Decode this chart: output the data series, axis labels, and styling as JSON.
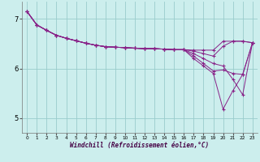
{
  "xlabel": "Windchill (Refroidissement éolien,°C)",
  "background_color": "#cceeed",
  "line_color": "#882288",
  "grid_color": "#99cccc",
  "xlim": [
    -0.5,
    23.5
  ],
  "ylim": [
    4.7,
    7.35
  ],
  "yticks": [
    5,
    6,
    7
  ],
  "xticks": [
    0,
    1,
    2,
    3,
    4,
    5,
    6,
    7,
    8,
    9,
    10,
    11,
    12,
    13,
    14,
    15,
    16,
    17,
    18,
    19,
    20,
    21,
    22,
    23
  ],
  "lines": [
    [
      7.15,
      6.88,
      6.77,
      6.67,
      6.61,
      6.56,
      6.51,
      6.47,
      6.44,
      6.43,
      6.42,
      6.41,
      6.4,
      6.4,
      6.39,
      6.38,
      6.38,
      6.37,
      6.37,
      6.37,
      6.55,
      6.55,
      6.55,
      6.52
    ],
    [
      7.15,
      6.88,
      6.77,
      6.67,
      6.61,
      6.56,
      6.51,
      6.47,
      6.44,
      6.43,
      6.42,
      6.41,
      6.4,
      6.4,
      6.39,
      6.38,
      6.38,
      6.35,
      6.3,
      6.25,
      6.45,
      6.55,
      6.55,
      6.52
    ],
    [
      7.15,
      6.88,
      6.77,
      6.67,
      6.61,
      6.56,
      6.51,
      6.47,
      6.44,
      6.43,
      6.42,
      6.41,
      6.4,
      6.4,
      6.39,
      6.38,
      6.38,
      6.3,
      6.2,
      6.1,
      6.05,
      5.78,
      5.47,
      6.52
    ],
    [
      7.15,
      6.88,
      6.77,
      6.67,
      6.61,
      6.56,
      6.51,
      6.47,
      6.44,
      6.43,
      6.42,
      6.41,
      6.4,
      6.4,
      6.39,
      6.38,
      6.38,
      6.25,
      6.1,
      5.95,
      5.97,
      5.9,
      5.88,
      6.52
    ],
    [
      7.15,
      6.88,
      6.77,
      6.67,
      6.61,
      6.56,
      6.51,
      6.47,
      6.44,
      6.43,
      6.42,
      6.41,
      6.4,
      6.4,
      6.39,
      6.38,
      6.38,
      6.2,
      6.05,
      5.9,
      5.18,
      5.55,
      5.88,
      6.52
    ]
  ]
}
